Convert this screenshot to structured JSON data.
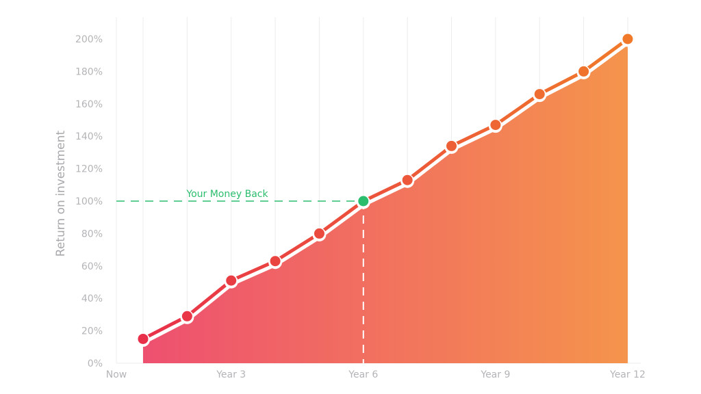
{
  "chart_data": {
    "type": "area",
    "title": "",
    "xlabel": "",
    "ylabel": "Return on investment",
    "x_tick_labels": [
      "Now",
      "Year 3",
      "Year 6",
      "Year 9",
      "Year 12"
    ],
    "x": [
      1,
      2,
      3,
      4,
      5,
      6,
      7,
      8,
      9,
      10,
      11,
      12
    ],
    "series": [
      {
        "values": [
          15,
          29,
          51,
          63,
          80,
          100,
          113,
          134,
          147,
          166,
          180,
          200
        ]
      }
    ],
    "y_tick_labels": [
      "0%",
      "20%",
      "40%",
      "60%",
      "80%",
      "100%",
      "120%",
      "140%",
      "160%",
      "180%",
      "200%"
    ],
    "ylim": [
      0,
      200
    ],
    "grid": "vertical",
    "annotation": {
      "label": "Your Money Back",
      "x": 6,
      "y": 100,
      "color": "#2bbd6e"
    },
    "colors": {
      "start": "#e8304a",
      "end": "#f07a2a",
      "fill_start": "#ee5070",
      "fill_end": "#f5944c"
    }
  }
}
